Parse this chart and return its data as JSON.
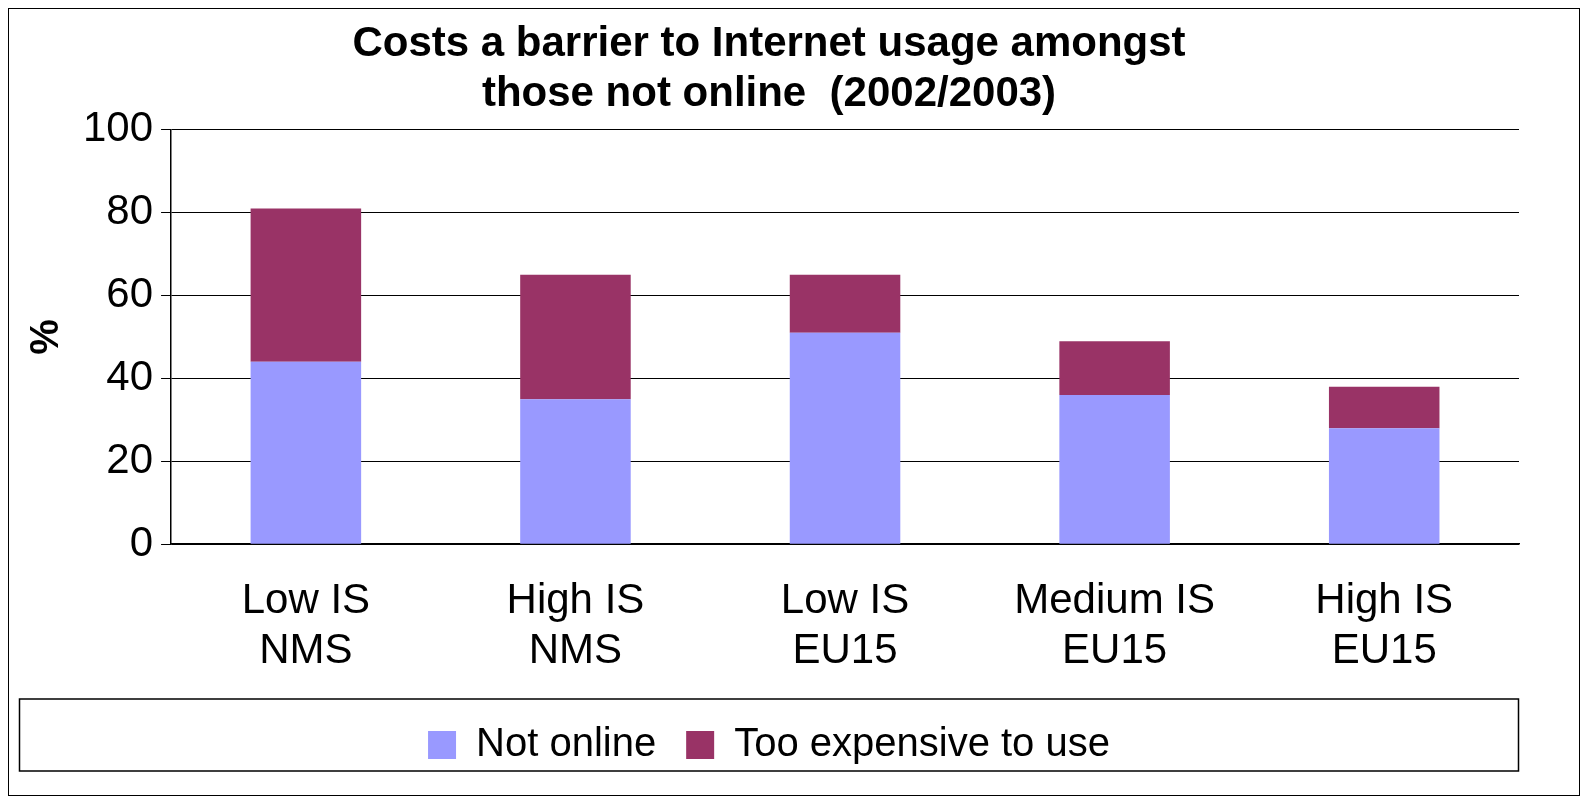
{
  "chart_data": {
    "type": "bar",
    "title": "Costs a barrier to Internet usage amongst those not online  (2002/2003)",
    "ylabel": "%",
    "categories": [
      "Low IS NMS",
      "High IS NMS",
      "Low IS EU15",
      "Medium IS EU15",
      "High IS EU15"
    ],
    "series": [
      {
        "name": "Not online",
        "color": "#9999ff",
        "values": [
          44,
          35,
          51,
          36,
          28
        ]
      },
      {
        "name": "Too expensive to use",
        "color": "#993366",
        "values": [
          37,
          30,
          14,
          13,
          10
        ]
      }
    ],
    "stacked": true,
    "ylim": [
      0,
      100
    ],
    "yticks": [
      0,
      20,
      40,
      60,
      80,
      100
    ],
    "grid": "y",
    "legend": "bottom"
  }
}
